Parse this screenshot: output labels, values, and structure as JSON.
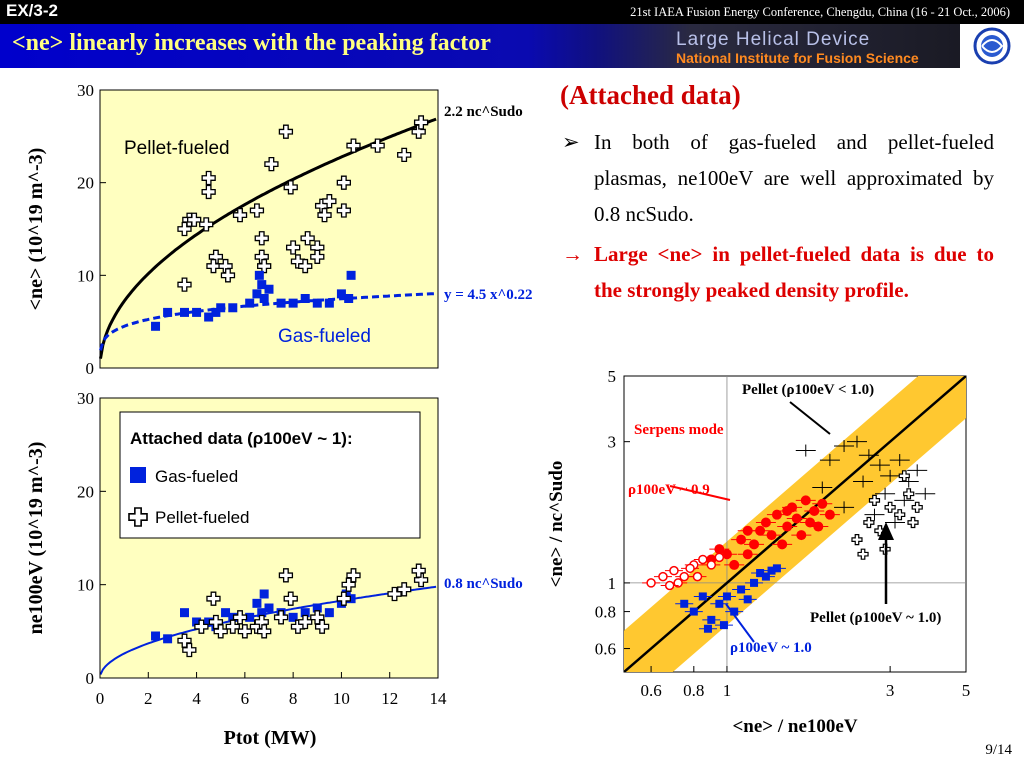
{
  "header": {
    "code": "EX/3-2",
    "conference": "21st IAEA Fusion Energy Conference, Chengdu, China (16 - 21 Oct., 2006)",
    "title": "<ne> linearly increases with the peaking factor",
    "lhd_line1": "Large Helical Device",
    "lhd_line2": "National Institute for Fusion Science"
  },
  "text": {
    "attached_heading": "(Attached data)",
    "bullet1_marker": "➢",
    "bullet1": "In both of gas-fueled and pellet-fueled plasmas, ne100eV are well approximated by 0.8 ncSudo.",
    "bullet2_marker": "→",
    "bullet2": "Large <ne> in pellet-fueled data is due to the strongly peaked density profile."
  },
  "slide_number": "9/14",
  "colors": {
    "gas": "#0022dd",
    "pellet": "#000000",
    "serpens": "#ff0000",
    "panel_bg": "#ffffc0",
    "band": "#ffc830"
  },
  "chart_data": [
    {
      "type": "scatter",
      "id": "top-left",
      "ylabel": "<ne> (10^19 m^-3)",
      "xlim": [
        0,
        14
      ],
      "ylim": [
        0,
        30
      ],
      "yticks": [
        "0",
        "10",
        "20",
        "30"
      ],
      "labels": [
        "Pellet-fueled",
        "Gas-fueled",
        "2.2 nc^Sudo",
        "y = 4.5 x^0.22"
      ],
      "series": [
        {
          "name": "Pellet-fueled",
          "points": [
            [
              3.5,
              15
            ],
            [
              3.7,
              16
            ],
            [
              3.9,
              16
            ],
            [
              4.4,
              15.5
            ],
            [
              4.5,
              20.5
            ],
            [
              4.5,
              19
            ],
            [
              4.8,
              12
            ],
            [
              4.7,
              11
            ],
            [
              5.2,
              11
            ],
            [
              5.3,
              10
            ],
            [
              5.8,
              16.5
            ],
            [
              6.5,
              17
            ],
            [
              6.7,
              12
            ],
            [
              6.7,
              14
            ],
            [
              6.8,
              11
            ],
            [
              7.1,
              22
            ],
            [
              7.7,
              25.5
            ],
            [
              7.9,
              19.5
            ],
            [
              8.0,
              13
            ],
            [
              8.2,
              11.5
            ],
            [
              8.5,
              11
            ],
            [
              8.6,
              14
            ],
            [
              9.0,
              13
            ],
            [
              9.2,
              17.5
            ],
            [
              9.3,
              16.5
            ],
            [
              9.5,
              18
            ],
            [
              10.1,
              20
            ],
            [
              10.1,
              17
            ],
            [
              10.5,
              24
            ],
            [
              11.5,
              24
            ],
            [
              12.6,
              23
            ],
            [
              13.2,
              25.5
            ],
            [
              13.3,
              26.5
            ],
            [
              3.5,
              9
            ],
            [
              9.0,
              12
            ]
          ]
        },
        {
          "name": "Gas-fueled",
          "points": [
            [
              2.3,
              4.5
            ],
            [
              2.8,
              6
            ],
            [
              3.5,
              6
            ],
            [
              4.0,
              6
            ],
            [
              4.5,
              5.5
            ],
            [
              4.8,
              6
            ],
            [
              5.0,
              6.5
            ],
            [
              5.5,
              6.5
            ],
            [
              6.2,
              7
            ],
            [
              6.5,
              8
            ],
            [
              6.6,
              10
            ],
            [
              6.7,
              9
            ],
            [
              6.8,
              7.5
            ],
            [
              7.0,
              8.5
            ],
            [
              7.5,
              7
            ],
            [
              8.0,
              7
            ],
            [
              8.5,
              7.5
            ],
            [
              9.0,
              7
            ],
            [
              9.5,
              7
            ],
            [
              10.0,
              8
            ],
            [
              10.3,
              7.5
            ],
            [
              10.4,
              10
            ]
          ]
        }
      ],
      "fits": [
        {
          "name": "2.2 nc^Sudo",
          "a": 7.2,
          "b": 0.5
        },
        {
          "name": "y = 4.5 x^0.22",
          "a": 4.5,
          "b": 0.22
        }
      ]
    },
    {
      "type": "scatter",
      "id": "bottom-left",
      "ylabel": "ne100eV (10^19 m^-3)",
      "xlabel": "Ptot (MW)",
      "xlim": [
        0,
        14
      ],
      "ylim": [
        0,
        30
      ],
      "xticks": [
        "0",
        "2",
        "4",
        "6",
        "8",
        "10",
        "12",
        "14"
      ],
      "yticks": [
        "0",
        "10",
        "20",
        "30"
      ],
      "legend": [
        "Attached data (ρ100eV ~ 1):",
        "Gas-fueled",
        "Pellet-fueled"
      ],
      "labels": [
        "0.8 nc^Sudo"
      ],
      "series": [
        {
          "name": "Gas-fueled",
          "points": [
            [
              2.3,
              4.5
            ],
            [
              2.8,
              4.2
            ],
            [
              3.5,
              7
            ],
            [
              4.0,
              6
            ],
            [
              4.5,
              6
            ],
            [
              4.8,
              5.5
            ],
            [
              5.2,
              7
            ],
            [
              5.5,
              6.5
            ],
            [
              6.2,
              6.5
            ],
            [
              6.5,
              8
            ],
            [
              6.7,
              7
            ],
            [
              6.8,
              9
            ],
            [
              7.0,
              7.5
            ],
            [
              7.5,
              7
            ],
            [
              8.0,
              6.5
            ],
            [
              8.5,
              7
            ],
            [
              9.0,
              7.5
            ],
            [
              9.5,
              7
            ],
            [
              10.0,
              8
            ],
            [
              10.2,
              9
            ],
            [
              10.4,
              8.5
            ]
          ]
        },
        {
          "name": "Pellet-fueled",
          "points": [
            [
              3.5,
              4
            ],
            [
              3.7,
              3
            ],
            [
              4.2,
              5.5
            ],
            [
              4.7,
              8.5
            ],
            [
              4.8,
              6
            ],
            [
              5.0,
              5
            ],
            [
              5.5,
              5.5
            ],
            [
              5.8,
              6.5
            ],
            [
              6.0,
              5
            ],
            [
              6.5,
              5.5
            ],
            [
              6.7,
              6
            ],
            [
              6.8,
              5
            ],
            [
              7.5,
              6.5
            ],
            [
              7.7,
              11
            ],
            [
              7.9,
              8.5
            ],
            [
              8.2,
              5.5
            ],
            [
              8.5,
              6
            ],
            [
              9.0,
              6.5
            ],
            [
              9.2,
              5.5
            ],
            [
              10.1,
              8.5
            ],
            [
              10.3,
              10
            ],
            [
              10.5,
              11
            ],
            [
              12.2,
              9
            ],
            [
              12.6,
              9.5
            ],
            [
              13.3,
              10.5
            ],
            [
              13.2,
              11.5
            ]
          ]
        }
      ],
      "fits": [
        {
          "name": "0.8 nc^Sudo",
          "a": 2.62,
          "b": 0.5
        }
      ]
    },
    {
      "type": "scatter",
      "id": "right",
      "xlabel": "<ne> / ne100eV",
      "ylabel": "<ne> / nc^Sudo",
      "scale": "log",
      "xlim": [
        0.5,
        5
      ],
      "ylim": [
        0.5,
        5
      ],
      "xticks": [
        "0.6",
        "0.8",
        "1",
        "3",
        "5"
      ],
      "yticks": [
        "0.6",
        "0.8",
        "1",
        "3",
        "5"
      ],
      "annotations": [
        "Pellet (ρ100eV < 1.0)",
        "Serpens mode",
        "ρ100eV ~ 0.9",
        "Pellet (ρ100eV ~ 1.0)",
        "ρ100eV ~ 1.0"
      ],
      "series": [
        {
          "name": "Pellet (ρ100eV < 1.0)",
          "points": [
            [
              1.7,
              2.8
            ],
            [
              2,
              2.6
            ],
            [
              2.2,
              2.9
            ],
            [
              2.4,
              3
            ],
            [
              2.6,
              2.7
            ],
            [
              2.8,
              2.5
            ],
            [
              3,
              2.3
            ],
            [
              3.2,
              2.6
            ],
            [
              3.4,
              2.2
            ],
            [
              2.5,
              2.2
            ],
            [
              2.9,
              2.0
            ],
            [
              3.3,
              1.9
            ],
            [
              1.9,
              2.1
            ],
            [
              2.2,
              1.8
            ],
            [
              3.6,
              2.4
            ],
            [
              3.8,
              2.0
            ],
            [
              2.7,
              1.7
            ],
            [
              3.1,
              1.6
            ]
          ]
        },
        {
          "name": "Pellet (ρ100eV ~ 1.0)",
          "points": [
            [
              2.4,
              1.4
            ],
            [
              2.6,
              1.6
            ],
            [
              2.8,
              1.5
            ],
            [
              3.0,
              1.8
            ],
            [
              3.2,
              1.7
            ],
            [
              3.4,
              2.0
            ],
            [
              3.6,
              1.8
            ],
            [
              2.5,
              1.25
            ],
            [
              2.9,
              1.3
            ],
            [
              3.3,
              2.3
            ],
            [
              3.5,
              1.6
            ],
            [
              2.7,
              1.9
            ]
          ]
        },
        {
          "name": "Serpens mode",
          "points": [
            [
              0.9,
              1.2
            ],
            [
              0.95,
              1.3
            ],
            [
              1.0,
              1.25
            ],
            [
              1.1,
              1.4
            ],
            [
              1.15,
              1.5
            ],
            [
              1.2,
              1.35
            ],
            [
              1.3,
              1.6
            ],
            [
              1.35,
              1.45
            ],
            [
              1.4,
              1.7
            ],
            [
              1.5,
              1.55
            ],
            [
              1.55,
              1.8
            ],
            [
              1.6,
              1.65
            ],
            [
              1.7,
              1.9
            ],
            [
              1.75,
              1.6
            ],
            [
              1.8,
              1.75
            ],
            [
              1.9,
              1.85
            ],
            [
              2.0,
              1.7
            ],
            [
              1.25,
              1.5
            ],
            [
              1.45,
              1.35
            ],
            [
              1.65,
              1.45
            ],
            [
              1.05,
              1.15
            ],
            [
              1.85,
              1.55
            ],
            [
              1.15,
              1.25
            ],
            [
              1.5,
              1.75
            ]
          ]
        },
        {
          "name": "ρ100eV ~ 0.9",
          "points": [
            [
              0.6,
              1.0
            ],
            [
              0.65,
              1.05
            ],
            [
              0.7,
              1.1
            ],
            [
              0.75,
              1.05
            ],
            [
              0.8,
              1.15
            ],
            [
              0.85,
              1.2
            ],
            [
              0.9,
              1.15
            ],
            [
              0.72,
              1.0
            ],
            [
              0.78,
              1.12
            ],
            [
              0.68,
              0.98
            ],
            [
              0.82,
              1.05
            ],
            [
              0.95,
              1.22
            ]
          ]
        },
        {
          "name": "ρ100eV ~ 1.0",
          "points": [
            [
              0.75,
              0.85
            ],
            [
              0.8,
              0.8
            ],
            [
              0.85,
              0.9
            ],
            [
              0.9,
              0.75
            ],
            [
              0.95,
              0.85
            ],
            [
              1.0,
              0.9
            ],
            [
              1.05,
              0.8
            ],
            [
              1.1,
              0.95
            ],
            [
              1.15,
              0.88
            ],
            [
              1.2,
              1.0
            ],
            [
              1.3,
              1.05
            ],
            [
              0.88,
              0.7
            ],
            [
              0.98,
              0.72
            ],
            [
              1.25,
              1.08
            ],
            [
              1.35,
              1.1
            ],
            [
              1.4,
              1.12
            ]
          ]
        }
      ]
    }
  ]
}
